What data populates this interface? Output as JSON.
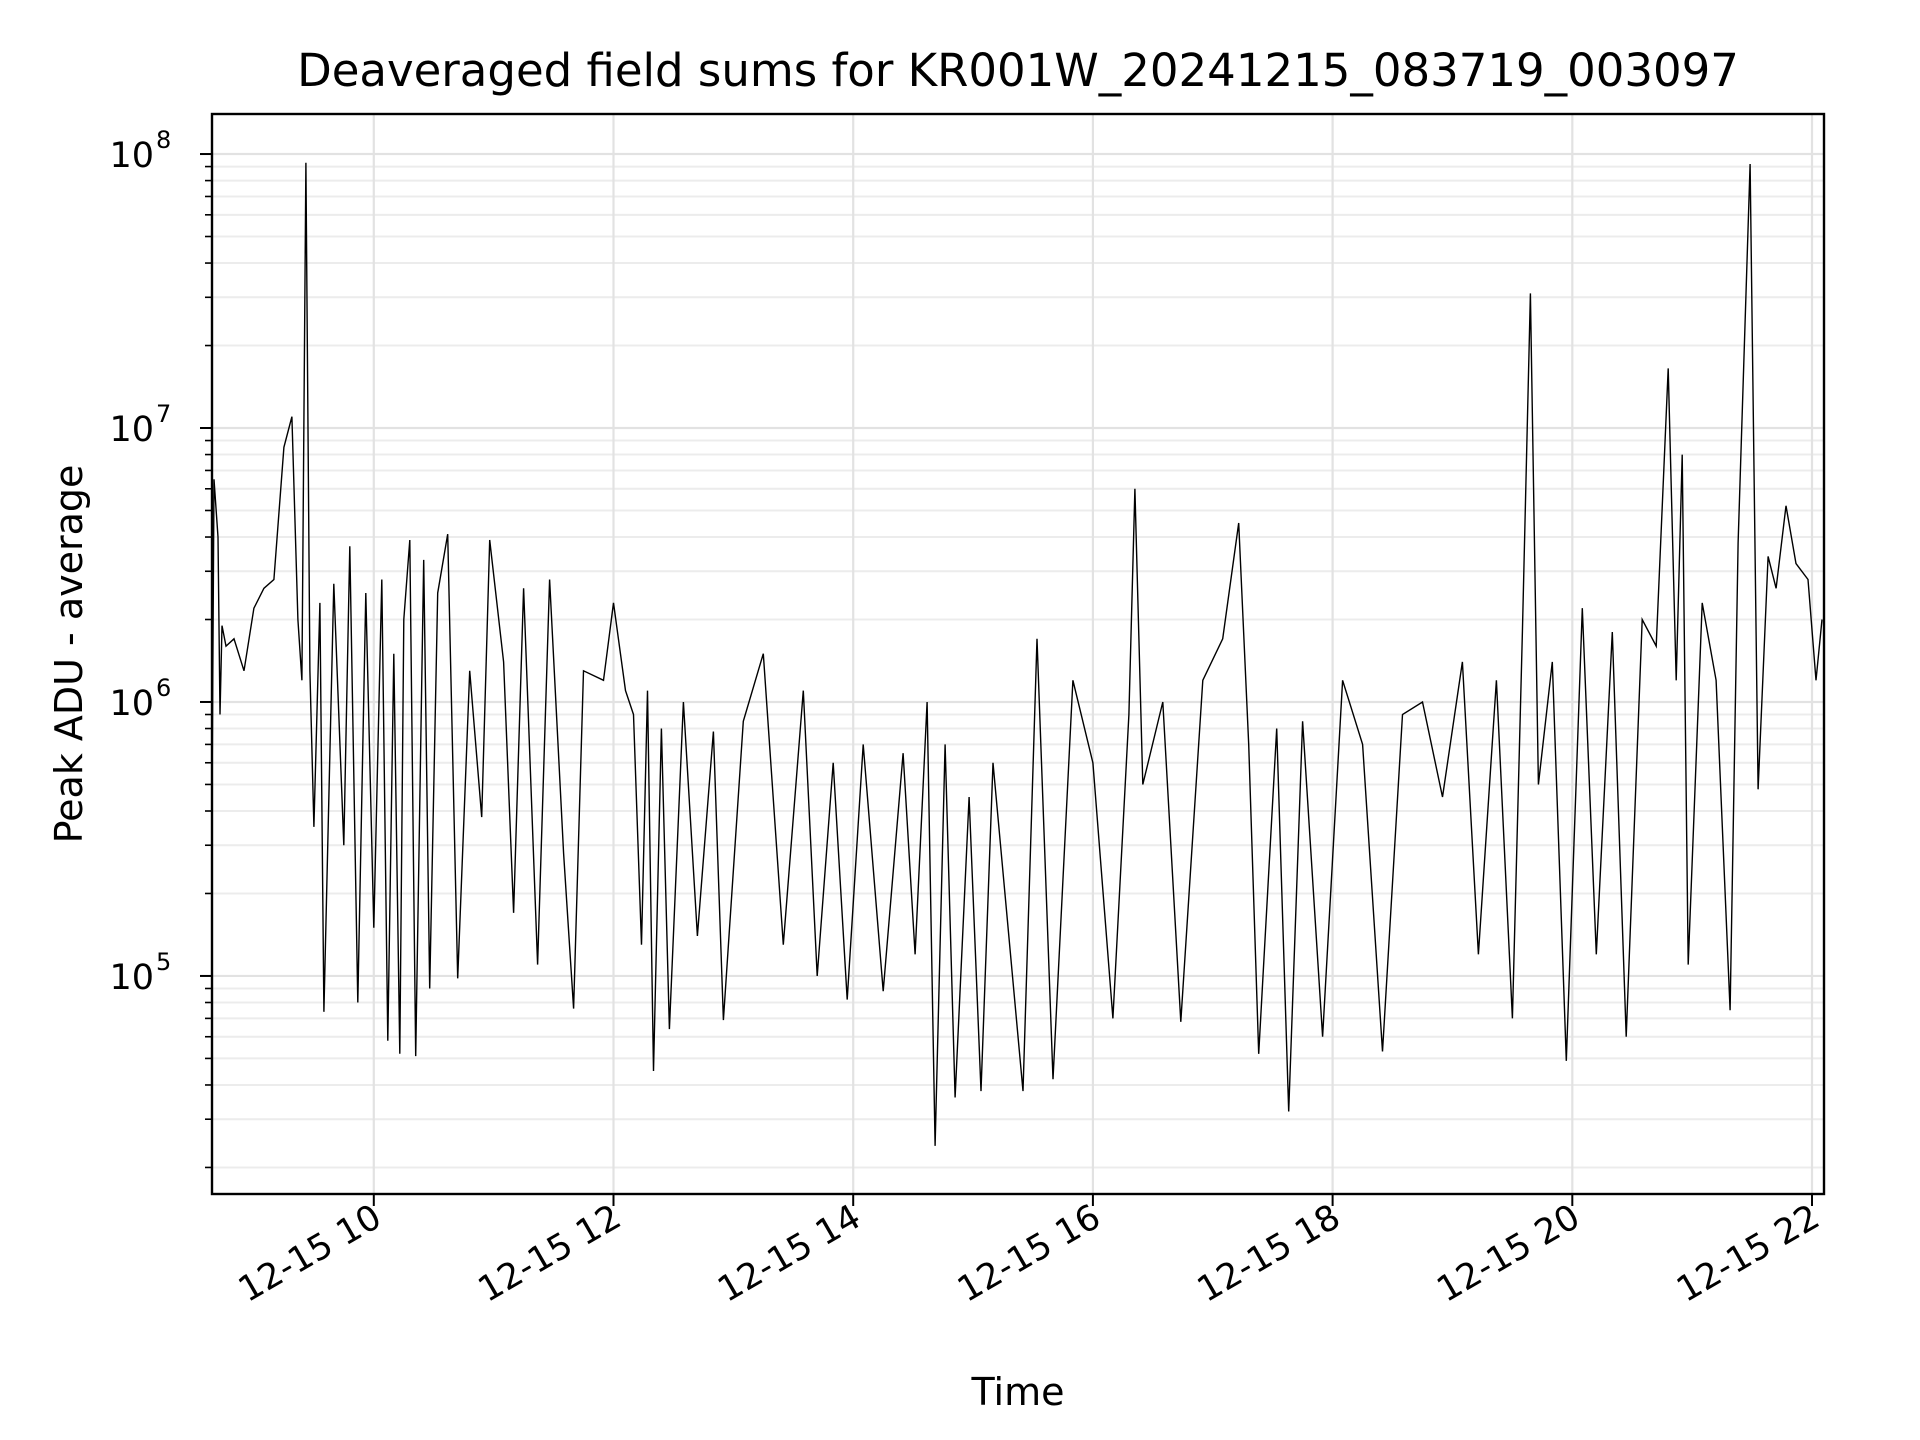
{
  "chart_data": {
    "type": "line",
    "title": "Deaveraged field sums for KR001W_20241215_083719_003097",
    "xlabel": "Time",
    "ylabel": "Peak ADU - average",
    "yscale": "log",
    "ylim": [
      16000,
      140000000
    ],
    "xlim": [
      "12-15 08:39",
      "12-15 22:06"
    ],
    "grid": "on (major and minor)",
    "x_ticks": [
      "12-15 10",
      "12-15 12",
      "12-15 14",
      "12-15 16",
      "12-15 18",
      "12-15 20",
      "12-15 22"
    ],
    "y_ticks": [
      {
        "base": "10",
        "exp": "5",
        "value": 100000
      },
      {
        "base": "10",
        "exp": "6",
        "value": 1000000
      },
      {
        "base": "10",
        "exp": "7",
        "value": 10000000
      },
      {
        "base": "10",
        "exp": "8",
        "value": 100000000
      }
    ],
    "series": [
      {
        "color": "#000000",
        "points": [
          [
            "12-15 08:39",
            420000
          ],
          [
            "12-15 08:40",
            6500000
          ],
          [
            "12-15 08:42",
            4000000
          ],
          [
            "12-15 08:43",
            900000
          ],
          [
            "12-15 08:44",
            1900000
          ],
          [
            "12-15 08:46",
            1600000
          ],
          [
            "12-15 08:50",
            1700000
          ],
          [
            "12-15 08:55",
            1300000
          ],
          [
            "12-15 09:00",
            2200000
          ],
          [
            "12-15 09:05",
            2600000
          ],
          [
            "12-15 09:10",
            2800000
          ],
          [
            "12-15 09:15",
            8500000
          ],
          [
            "12-15 09:19",
            11000000
          ],
          [
            "12-15 09:22",
            2000000
          ],
          [
            "12-15 09:24",
            1200000
          ],
          [
            "12-15 09:26",
            93000000
          ],
          [
            "12-15 09:28",
            1300000
          ],
          [
            "12-15 09:30",
            350000
          ],
          [
            "12-15 09:33",
            2300000
          ],
          [
            "12-15 09:35",
            74000
          ],
          [
            "12-15 09:40",
            2700000
          ],
          [
            "12-15 09:45",
            300000
          ],
          [
            "12-15 09:48",
            3700000
          ],
          [
            "12-15 09:52",
            80000
          ],
          [
            "12-15 09:56",
            2500000
          ],
          [
            "12-15 10:00",
            150000
          ],
          [
            "12-15 10:04",
            2800000
          ],
          [
            "12-15 10:07",
            58000
          ],
          [
            "12-15 10:10",
            1500000
          ],
          [
            "12-15 10:13",
            52000
          ],
          [
            "12-15 10:15",
            2000000
          ],
          [
            "12-15 10:18",
            3900000
          ],
          [
            "12-15 10:21",
            51000
          ],
          [
            "12-15 10:25",
            3300000
          ],
          [
            "12-15 10:28",
            90000
          ],
          [
            "12-15 10:32",
            2500000
          ],
          [
            "12-15 10:37",
            4100000
          ],
          [
            "12-15 10:42",
            98000
          ],
          [
            "12-15 10:48",
            1300000
          ],
          [
            "12-15 10:54",
            380000
          ],
          [
            "12-15 10:58",
            3900000
          ],
          [
            "12-15 11:05",
            1400000
          ],
          [
            "12-15 11:10",
            170000
          ],
          [
            "12-15 11:15",
            2600000
          ],
          [
            "12-15 11:22",
            110000
          ],
          [
            "12-15 11:28",
            2800000
          ],
          [
            "12-15 11:35",
            280000
          ],
          [
            "12-15 11:40",
            76000
          ],
          [
            "12-15 11:45",
            1300000
          ],
          [
            "12-15 11:55",
            1200000
          ],
          [
            "12-15 12:00",
            2300000
          ],
          [
            "12-15 12:06",
            1100000
          ],
          [
            "12-15 12:10",
            900000
          ],
          [
            "12-15 12:14",
            130000
          ],
          [
            "12-15 12:17",
            1100000
          ],
          [
            "12-15 12:20",
            45000
          ],
          [
            "12-15 12:24",
            800000
          ],
          [
            "12-15 12:28",
            64000
          ],
          [
            "12-15 12:35",
            1000000
          ],
          [
            "12-15 12:42",
            140000
          ],
          [
            "12-15 12:50",
            780000
          ],
          [
            "12-15 12:55",
            69000
          ],
          [
            "12-15 13:05",
            850000
          ],
          [
            "12-15 13:15",
            1500000
          ],
          [
            "12-15 13:25",
            130000
          ],
          [
            "12-15 13:35",
            1100000
          ],
          [
            "12-15 13:42",
            100000
          ],
          [
            "12-15 13:50",
            600000
          ],
          [
            "12-15 13:57",
            82000
          ],
          [
            "12-15 14:05",
            700000
          ],
          [
            "12-15 14:15",
            88000
          ],
          [
            "12-15 14:25",
            650000
          ],
          [
            "12-15 14:31",
            120000
          ],
          [
            "12-15 14:37",
            1000000
          ],
          [
            "12-15 14:41",
            24000
          ],
          [
            "12-15 14:46",
            700000
          ],
          [
            "12-15 14:51",
            36000
          ],
          [
            "12-15 14:58",
            450000
          ],
          [
            "12-15 15:04",
            38000
          ],
          [
            "12-15 15:10",
            600000
          ],
          [
            "12-15 15:25",
            38000
          ],
          [
            "12-15 15:32",
            1700000
          ],
          [
            "12-15 15:40",
            42000
          ],
          [
            "12-15 15:50",
            1200000
          ],
          [
            "12-15 16:00",
            600000
          ],
          [
            "12-15 16:10",
            70000
          ],
          [
            "12-15 16:18",
            900000
          ],
          [
            "12-15 16:21",
            6000000
          ],
          [
            "12-15 16:25",
            500000
          ],
          [
            "12-15 16:35",
            1000000
          ],
          [
            "12-15 16:44",
            68000
          ],
          [
            "12-15 16:55",
            1200000
          ],
          [
            "12-15 17:05",
            1700000
          ],
          [
            "12-15 17:13",
            4500000
          ],
          [
            "12-15 17:18",
            700000
          ],
          [
            "12-15 17:23",
            52000
          ],
          [
            "12-15 17:32",
            800000
          ],
          [
            "12-15 17:38",
            32000
          ],
          [
            "12-15 17:45",
            850000
          ],
          [
            "12-15 17:55",
            60000
          ],
          [
            "12-15 18:05",
            1200000
          ],
          [
            "12-15 18:15",
            700000
          ],
          [
            "12-15 18:25",
            53000
          ],
          [
            "12-15 18:35",
            900000
          ],
          [
            "12-15 18:45",
            1000000
          ],
          [
            "12-15 18:55",
            450000
          ],
          [
            "12-15 19:05",
            1400000
          ],
          [
            "12-15 19:13",
            120000
          ],
          [
            "12-15 19:22",
            1200000
          ],
          [
            "12-15 19:30",
            70000
          ],
          [
            "12-15 19:35",
            1800000
          ],
          [
            "12-15 19:39",
            31000000
          ],
          [
            "12-15 19:43",
            500000
          ],
          [
            "12-15 19:50",
            1400000
          ],
          [
            "12-15 19:57",
            49000
          ],
          [
            "12-15 20:05",
            2200000
          ],
          [
            "12-15 20:12",
            120000
          ],
          [
            "12-15 20:20",
            1800000
          ],
          [
            "12-15 20:27",
            60000
          ],
          [
            "12-15 20:35",
            2000000
          ],
          [
            "12-15 20:42",
            1600000
          ],
          [
            "12-15 20:48",
            16500000
          ],
          [
            "12-15 20:52",
            1200000
          ],
          [
            "12-15 20:55",
            8000000
          ],
          [
            "12-15 20:58",
            110000
          ],
          [
            "12-15 21:05",
            2300000
          ],
          [
            "12-15 21:12",
            1200000
          ],
          [
            "12-15 21:19",
            75000
          ],
          [
            "12-15 21:23",
            3800000
          ],
          [
            "12-15 21:29",
            92000000
          ],
          [
            "12-15 21:33",
            480000
          ],
          [
            "12-15 21:38",
            3400000
          ],
          [
            "12-15 21:42",
            2600000
          ],
          [
            "12-15 21:47",
            5200000
          ],
          [
            "12-15 21:52",
            3200000
          ],
          [
            "12-15 21:58",
            2800000
          ],
          [
            "12-15 22:02",
            1200000
          ],
          [
            "12-15 22:05",
            2000000
          ]
        ]
      }
    ]
  }
}
